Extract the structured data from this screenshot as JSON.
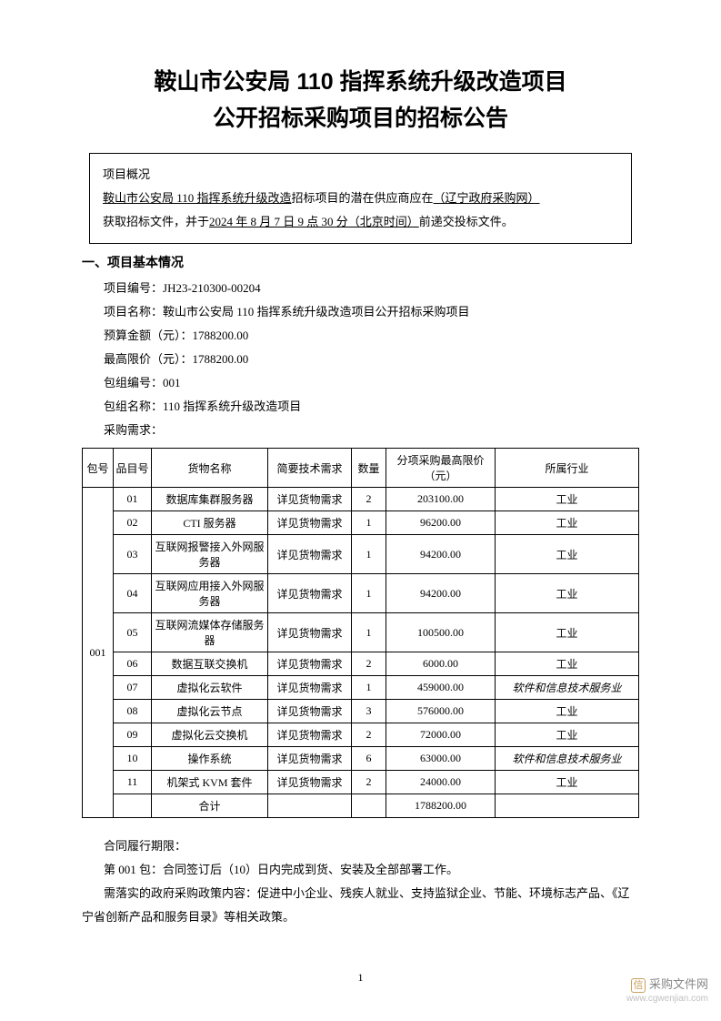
{
  "title_line1": "鞍山市公安局 110 指挥系统升级改造项目",
  "title_line2": "公开招标采购项目的招标公告",
  "overview": {
    "heading": "项目概况",
    "line1_u1": "鞍山市公安局 110 指挥系统升级改造",
    "line1_mid": "招标项目的潜在供应商应在",
    "line1_u2": "（辽宁政府采购网）",
    "line2_pre": "获取招标文件，并于",
    "line2_u": "2024 年 8 月 7 日 9 点 30 分（北京时间）",
    "line2_post": "前递交投标文件。"
  },
  "section1_heading": "一、项目基本情况",
  "info": {
    "proj_no_label": "项目编号：",
    "proj_no": "JH23-210300-00204",
    "proj_name_label": "项目名称：",
    "proj_name": "鞍山市公安局 110 指挥系统升级改造项目公开招标采购项目",
    "budget_label": "预算金额（元）：",
    "budget": "1788200.00",
    "max_label": "最高限价（元）：",
    "max": "1788200.00",
    "pkg_no_label": "包组编号：",
    "pkg_no": "001",
    "pkg_name_label": "包组名称：",
    "pkg_name": "110 指挥系统升级改造项目",
    "req_label": "采购需求："
  },
  "table": {
    "headers": {
      "pkg": "包号",
      "item": "品目号",
      "name": "货物名称",
      "tech": "简要技术需求",
      "qty": "数量",
      "price": "分项采购最高限价（元）",
      "industry": "所属行业"
    },
    "pkg_value": "001",
    "rows": [
      {
        "item": "01",
        "name": "数据库集群服务器",
        "tech": "详见货物需求",
        "qty": "2",
        "price": "203100.00",
        "ind": "工业"
      },
      {
        "item": "02",
        "name": "CTI 服务器",
        "tech": "详见货物需求",
        "qty": "1",
        "price": "96200.00",
        "ind": "工业"
      },
      {
        "item": "03",
        "name": "互联网报警接入外网服务器",
        "tech": "详见货物需求",
        "qty": "1",
        "price": "94200.00",
        "ind": "工业"
      },
      {
        "item": "04",
        "name": "互联网应用接入外网服务器",
        "tech": "详见货物需求",
        "qty": "1",
        "price": "94200.00",
        "ind": "工业"
      },
      {
        "item": "05",
        "name": "互联网流媒体存储服务器",
        "tech": "详见货物需求",
        "qty": "1",
        "price": "100500.00",
        "ind": "工业"
      },
      {
        "item": "06",
        "name": "数据互联交换机",
        "tech": "详见货物需求",
        "qty": "2",
        "price": "6000.00",
        "ind": "工业"
      },
      {
        "item": "07",
        "name": "虚拟化云软件",
        "tech": "详见货物需求",
        "qty": "1",
        "price": "459000.00",
        "ind": "软件和信息技术服务业",
        "italic": true
      },
      {
        "item": "08",
        "name": "虚拟化云节点",
        "tech": "详见货物需求",
        "qty": "3",
        "price": "576000.00",
        "ind": "工业"
      },
      {
        "item": "09",
        "name": "虚拟化云交换机",
        "tech": "详见货物需求",
        "qty": "2",
        "price": "72000.00",
        "ind": "工业"
      },
      {
        "item": "10",
        "name": "操作系统",
        "tech": "详见货物需求",
        "qty": "6",
        "price": "63000.00",
        "ind": "软件和信息技术服务业",
        "italic": true
      },
      {
        "item": "11",
        "name": "机架式 KVM 套件",
        "tech": "详见货物需求",
        "qty": "2",
        "price": "24000.00",
        "ind": "工业"
      }
    ],
    "total_label": "合计",
    "total_price": "1788200.00"
  },
  "footer": {
    "contract_label": "合同履行期限：",
    "contract_text": "第 001 包：合同签订后（10）日内完成到货、安装及全部部署工作。",
    "policy_text": "需落实的政府采购政策内容：促进中小企业、残疾人就业、支持监狱企业、节能、环境标志产品、《辽宁省创新产品和服务目录》等相关政策。"
  },
  "page_number": "1",
  "watermark": {
    "icon": "信",
    "label": "采购文件网",
    "url": "www.cgwenjian.com"
  },
  "colors": {
    "text": "#000000",
    "bg": "#ffffff",
    "border": "#000000",
    "wm_gray": "#b0b0b0",
    "wm_amber": "#c9a05a"
  }
}
